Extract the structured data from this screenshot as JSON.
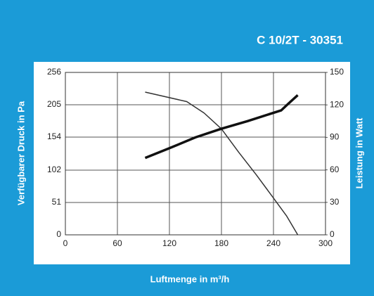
{
  "chart_data": {
    "type": "line",
    "title": "C 10/2T - 30351",
    "x_label": "Luftmenge in m³/h",
    "y_label": "Verfügbarer Druck in Pa",
    "y2_label": "Leistung in Watt",
    "xlim": [
      0,
      300
    ],
    "xticks": [
      0,
      60,
      120,
      180,
      240,
      300
    ],
    "ylim": [
      0,
      256
    ],
    "yticks": [
      0,
      51,
      102,
      154,
      205,
      256
    ],
    "y2lim": [
      0,
      150
    ],
    "y2ticks": [
      0,
      30,
      60,
      90,
      120,
      150
    ],
    "grid": true,
    "series": [
      {
        "name": "Druck",
        "color": "#333333",
        "width": 1.5,
        "x": [
          92,
          140,
          160,
          180,
          200,
          220,
          240,
          255,
          268
        ],
        "values": [
          225,
          210,
          192,
          167,
          130,
          95,
          58,
          30,
          0
        ]
      },
      {
        "name": "Leistung",
        "color": "#111111",
        "width": 3.5,
        "axis": "y2",
        "x": [
          92,
          120,
          150,
          180,
          210,
          249,
          257,
          268
        ],
        "values": [
          71,
          80,
          90,
          98,
          105,
          115,
          121,
          129
        ]
      }
    ]
  }
}
